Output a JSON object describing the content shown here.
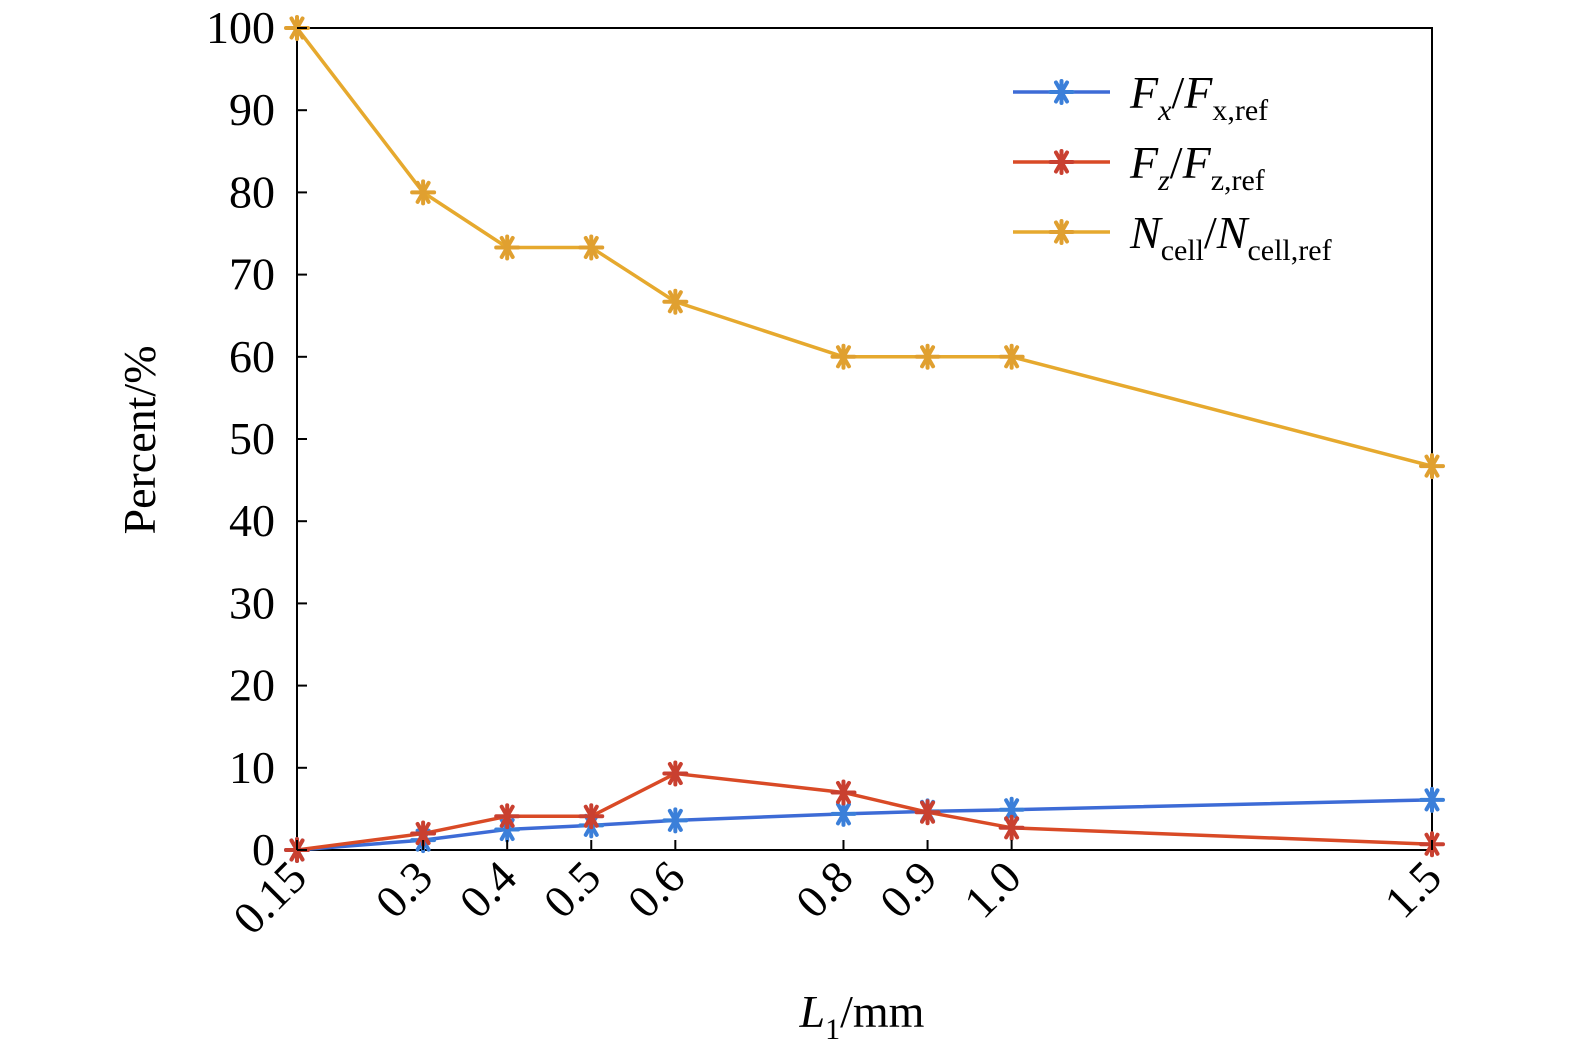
{
  "chart_data": {
    "type": "line",
    "x": [
      0.15,
      0.3,
      0.4,
      0.5,
      0.6,
      0.8,
      0.9,
      1.0,
      1.5
    ],
    "x_tick_labels": [
      "0.15",
      "0.3",
      "0.4",
      "0.5",
      "0.6",
      "0.8",
      "0.9",
      "1.0",
      "1.5"
    ],
    "xlabel": {
      "main": "L",
      "sub": "1",
      "unit": "/mm"
    },
    "ylabel": "Percent/%",
    "ylim": [
      0,
      100
    ],
    "y_ticks": [
      0,
      10,
      20,
      30,
      40,
      50,
      60,
      70,
      80,
      90,
      100
    ],
    "grid": false,
    "legend_position": "top-right",
    "series": [
      {
        "key": "fx",
        "legend": {
          "a": "F",
          "a_sub": "x",
          "sep": "/",
          "b": "F",
          "b_sub": "x,ref"
        },
        "color": "#3d6bd6",
        "marker_color": "#3b7fd9",
        "values": [
          0,
          1.2,
          2.5,
          3,
          3.6,
          4.4,
          4.7,
          4.9,
          6.1
        ]
      },
      {
        "key": "fz",
        "legend": {
          "a": "F",
          "a_sub": "z",
          "sep": "/",
          "b": "F",
          "b_sub": "z,ref"
        },
        "color": "#d94a26",
        "marker_color": "#c94030",
        "values": [
          0,
          2,
          4.1,
          4.1,
          9.3,
          7,
          4.6,
          2.7,
          0.7
        ]
      },
      {
        "key": "ncell",
        "legend": {
          "a": "N",
          "a_sub": "cell",
          "sep": "/",
          "b": "N",
          "b_sub": "cell,ref"
        },
        "color": "#e6a92e",
        "marker_color": "#e0a030",
        "values": [
          100,
          80,
          73.3,
          73.3,
          66.7,
          60,
          60,
          60,
          46.7
        ]
      }
    ]
  }
}
